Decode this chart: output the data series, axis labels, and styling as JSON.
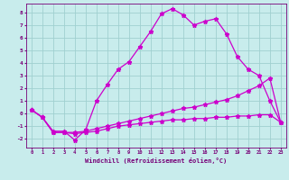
{
  "xlabel": "Windchill (Refroidissement éolien,°C)",
  "bg_color": "#c8ecec",
  "line_color": "#cc00cc",
  "grid_color": "#a0d0d0",
  "xlim": [
    -0.5,
    23.5
  ],
  "ylim": [
    -2.7,
    8.7
  ],
  "xticks": [
    0,
    1,
    2,
    3,
    4,
    5,
    6,
    7,
    8,
    9,
    10,
    11,
    12,
    13,
    14,
    15,
    16,
    17,
    18,
    19,
    20,
    21,
    22,
    23
  ],
  "yticks": [
    -2,
    -1,
    0,
    1,
    2,
    3,
    4,
    5,
    6,
    7,
    8
  ],
  "curve1_x": [
    0,
    1,
    2,
    3,
    4,
    5,
    6,
    7,
    8,
    9,
    10,
    11,
    12,
    13,
    14,
    15,
    16,
    17,
    18,
    19,
    20,
    21,
    22,
    23
  ],
  "curve1_y": [
    0.3,
    -0.3,
    -1.4,
    -1.4,
    -2.1,
    -1.3,
    1.0,
    2.3,
    3.5,
    4.1,
    5.3,
    6.5,
    7.9,
    8.3,
    7.8,
    7.0,
    7.3,
    7.5,
    6.3,
    4.5,
    3.5,
    3.0,
    1.0,
    -0.7
  ],
  "curve2_x": [
    0,
    1,
    2,
    3,
    4,
    5,
    6,
    7,
    8,
    9,
    10,
    11,
    12,
    13,
    14,
    15,
    16,
    17,
    18,
    19,
    20,
    21,
    22,
    23
  ],
  "curve2_y": [
    0.3,
    -0.3,
    -1.5,
    -1.5,
    -1.5,
    -1.4,
    -1.2,
    -1.0,
    -0.8,
    -0.6,
    -0.4,
    -0.2,
    0.0,
    0.2,
    0.4,
    0.5,
    0.7,
    0.9,
    1.1,
    1.4,
    1.8,
    2.2,
    2.8,
    -0.7
  ],
  "curve3_x": [
    0,
    1,
    2,
    3,
    4,
    5,
    6,
    7,
    8,
    9,
    10,
    11,
    12,
    13,
    14,
    15,
    16,
    17,
    18,
    19,
    20,
    21,
    22,
    23
  ],
  "curve3_y": [
    0.3,
    -0.3,
    -1.5,
    -1.5,
    -1.6,
    -1.5,
    -1.4,
    -1.2,
    -1.0,
    -0.9,
    -0.8,
    -0.7,
    -0.6,
    -0.5,
    -0.5,
    -0.4,
    -0.4,
    -0.3,
    -0.3,
    -0.2,
    -0.2,
    -0.1,
    -0.1,
    -0.7
  ]
}
